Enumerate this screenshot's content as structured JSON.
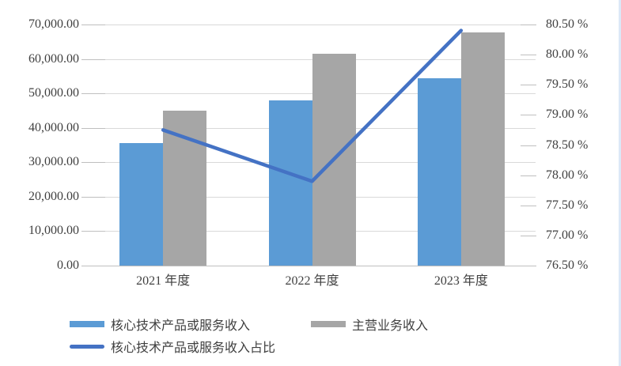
{
  "chart_data": {
    "type": "bar",
    "subtype": "combo-bar-line-dual-axis",
    "title": "",
    "categories": [
      "2021 年度",
      "2022 年度",
      "2023 年度"
    ],
    "series": [
      {
        "name": "核心技术产品或服务收入",
        "type": "bar",
        "axis": "left",
        "values": [
          35500,
          47900,
          54400
        ]
      },
      {
        "name": "主营业务收入",
        "type": "bar",
        "axis": "left",
        "values": [
          44900,
          61400,
          67700
        ]
      },
      {
        "name": "核心技术产品或服务收入占比",
        "type": "line",
        "axis": "right",
        "values": [
          78.75,
          77.9,
          80.4
        ]
      }
    ],
    "left_axis": {
      "min": 0,
      "max": 70000,
      "tick_labels_top_to_bottom": [
        "70,000.00",
        "60,000.00",
        "50,000.00",
        "40,000.00",
        "30,000.00",
        "20,000.00",
        "10,000.00",
        "0.00"
      ]
    },
    "right_axis": {
      "min": 76.5,
      "max": 80.5,
      "tick_labels_top_to_bottom": [
        "80.50 %",
        "80.00 %",
        "79.50 %",
        "79.00 %",
        "78.50 %",
        "78.00 %",
        "77.50 %",
        "77.00 %",
        "76.50 %"
      ]
    },
    "grid": true,
    "legend_position": "bottom-left"
  },
  "colors": {
    "bar_core": "#5B9BD5",
    "bar_main": "#A6A6A6",
    "ratio_line": "#4472C4",
    "gridline": "#D9D9D9",
    "axis_line": "#BFBFBF",
    "text": "#404040",
    "right_edge": "#DCE8F7"
  }
}
